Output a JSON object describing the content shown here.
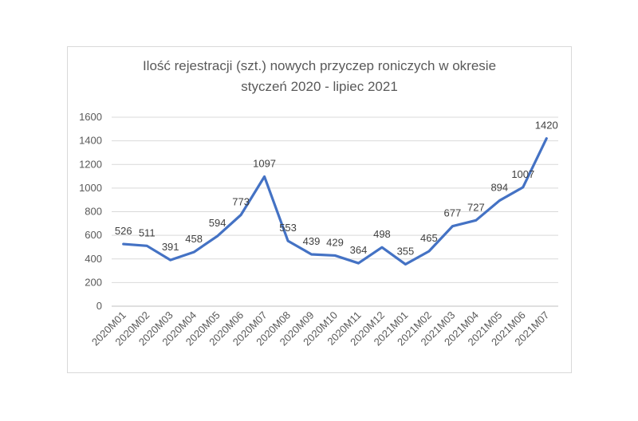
{
  "chart_data": {
    "type": "line",
    "title_lines": [
      "Ilość rejestracji (szt.) nowych przyczep roniczych w okresie",
      "styczeń 2020 - lipiec 2021"
    ],
    "categories": [
      "2020M01",
      "2020M02",
      "2020M03",
      "2020M04",
      "2020M05",
      "2020M06",
      "2020M07",
      "2020M08",
      "2020M09",
      "2020M10",
      "2020M11",
      "2020M12",
      "2021M01",
      "2021M02",
      "2021M03",
      "2021M04",
      "2021M05",
      "2021M06",
      "2021M07"
    ],
    "series": [
      {
        "values": [
          526,
          511,
          391,
          458,
          594,
          773,
          1097,
          553,
          439,
          429,
          364,
          498,
          355,
          465,
          677,
          727,
          894,
          1007,
          1420
        ],
        "color": "#4472c4"
      }
    ],
    "ylim": [
      0,
      1600
    ],
    "yticks": [
      0,
      200,
      400,
      600,
      800,
      1000,
      1200,
      1400,
      1600
    ],
    "grid": true,
    "legend": "none",
    "data_labels": true
  }
}
